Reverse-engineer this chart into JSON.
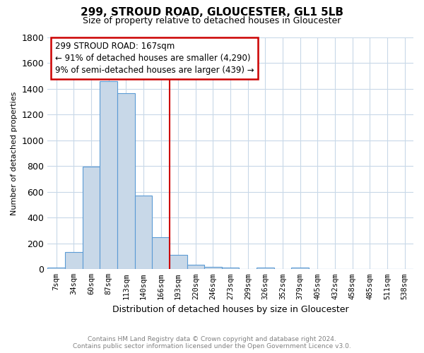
{
  "title": "299, STROUD ROAD, GLOUCESTER, GL1 5LB",
  "subtitle": "Size of property relative to detached houses in Gloucester",
  "xlabel": "Distribution of detached houses by size in Gloucester",
  "ylabel": "Number of detached properties",
  "bin_labels": [
    "7sqm",
    "34sqm",
    "60sqm",
    "87sqm",
    "113sqm",
    "140sqm",
    "166sqm",
    "193sqm",
    "220sqm",
    "246sqm",
    "273sqm",
    "299sqm",
    "326sqm",
    "352sqm",
    "379sqm",
    "405sqm",
    "432sqm",
    "458sqm",
    "485sqm",
    "511sqm",
    "538sqm"
  ],
  "bar_heights": [
    15,
    135,
    795,
    1460,
    1365,
    570,
    250,
    110,
    35,
    20,
    10,
    0,
    10,
    0,
    15,
    0,
    0,
    0,
    0,
    0,
    0
  ],
  "bar_color": "#c8d8e8",
  "bar_edge_color": "#5b9bd5",
  "vline_color": "#cc0000",
  "ylim": [
    0,
    1800
  ],
  "yticks": [
    0,
    200,
    400,
    600,
    800,
    1000,
    1200,
    1400,
    1600,
    1800
  ],
  "annotation_title": "299 STROUD ROAD: 167sqm",
  "annotation_line1": "← 91% of detached houses are smaller (4,290)",
  "annotation_line2": "9% of semi-detached houses are larger (439) →",
  "annotation_box_color": "#cc0000",
  "footer_line1": "Contains HM Land Registry data © Crown copyright and database right 2024.",
  "footer_line2": "Contains public sector information licensed under the Open Government Licence v3.0.",
  "background_color": "#ffffff",
  "grid_color": "#c8d8e8",
  "title_fontsize": 11,
  "subtitle_fontsize": 9,
  "ylabel_fontsize": 8,
  "xlabel_fontsize": 9,
  "footer_fontsize": 6.5,
  "annotation_fontsize": 8.5
}
